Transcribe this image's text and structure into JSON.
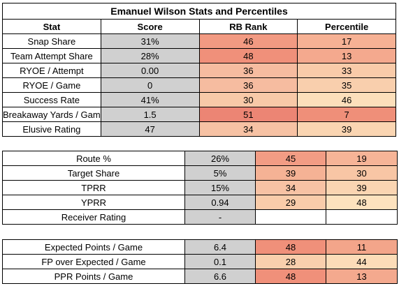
{
  "title": "Emanuel Wilson Stats and Percentiles",
  "headers": {
    "stat": "Stat",
    "score": "Score",
    "rank": "RB Rank",
    "percentile": "Percentile"
  },
  "sections": [
    {
      "rows": [
        {
          "stat": "Snap Share",
          "score": "31%",
          "rank": "46",
          "percentile": "17",
          "rank_color": "#f29a82",
          "pct_color": "#f6b194"
        },
        {
          "stat": "Team Attempt Share",
          "score": "28%",
          "rank": "48",
          "percentile": "13",
          "rank_color": "#f0907a",
          "pct_color": "#f4a98e"
        },
        {
          "stat": "RYOE / Attempt",
          "score": "0.00",
          "rank": "36",
          "percentile": "33",
          "rank_color": "#f6bca0",
          "pct_color": "#f9cba9"
        },
        {
          "stat": "RYOE / Game",
          "score": "0",
          "rank": "36",
          "percentile": "35",
          "rank_color": "#f6bca0",
          "pct_color": "#f9cfad"
        },
        {
          "stat": "Success Rate",
          "score": "41%",
          "rank": "30",
          "percentile": "46",
          "rank_color": "#f8c9a8",
          "pct_color": "#fcdfbb"
        },
        {
          "stat": "Breakaway Yards / Game",
          "score": "1.5",
          "rank": "51",
          "percentile": "7",
          "rank_color": "#ec8574",
          "pct_color": "#ef8f79"
        },
        {
          "stat": "Elusive Rating",
          "score": "47",
          "rank": "34",
          "percentile": "39",
          "rank_color": "#f7c2a4",
          "pct_color": "#fad5b2"
        }
      ]
    },
    {
      "rows": [
        {
          "stat": "Route %",
          "score": "26%",
          "rank": "45",
          "percentile": "19",
          "rank_color": "#f29c84",
          "pct_color": "#f6b497"
        },
        {
          "stat": "Target Share",
          "score": "5%",
          "rank": "39",
          "percentile": "30",
          "rank_color": "#f5b295",
          "pct_color": "#f8c6a5"
        },
        {
          "stat": "TPRR",
          "score": "15%",
          "rank": "34",
          "percentile": "39",
          "rank_color": "#f7c2a4",
          "pct_color": "#fad5b2"
        },
        {
          "stat": "YPRR",
          "score": "0.94",
          "rank": "29",
          "percentile": "48",
          "rank_color": "#f9ccaa",
          "pct_color": "#fde2be"
        },
        {
          "stat": "Receiver Rating",
          "score": "-",
          "rank": "",
          "percentile": "",
          "rank_color": "#ffffff",
          "pct_color": "#ffffff"
        }
      ]
    },
    {
      "rows": [
        {
          "stat": "Expected Points / Game",
          "score": "6.4",
          "rank": "48",
          "percentile": "11",
          "rank_color": "#f0907a",
          "pct_color": "#f3a58a"
        },
        {
          "stat": "FP over Expected / Game",
          "score": "0.1",
          "rank": "28",
          "percentile": "44",
          "rank_color": "#f9cfad",
          "pct_color": "#fcdcb8"
        },
        {
          "stat": "PPR Points / Game",
          "score": "6.6",
          "rank": "48",
          "percentile": "13",
          "rank_color": "#f0907a",
          "pct_color": "#f4a98e"
        }
      ]
    }
  ]
}
